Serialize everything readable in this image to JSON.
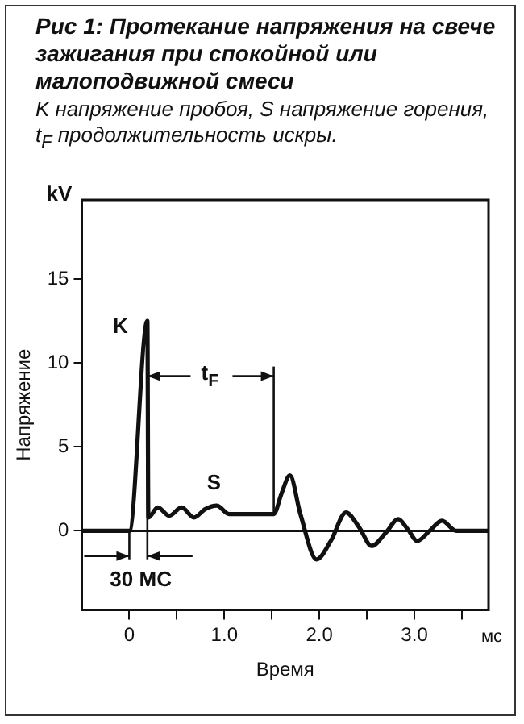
{
  "chart_data": {
    "type": "line",
    "title": "Рис 1: Протекание напряжения на свече зажигания при спокойной или малоподвижной смеси",
    "subtitle": "K напряжение пробоя, S напряжение горения, t$_{F}$ продолжительность искры.",
    "xlabel": "Время",
    "ylabel": "Напряжение",
    "annotations": [
      "kV",
      "мс",
      "K",
      "S",
      "t$_{F}$",
      "30 МС"
    ],
    "x": [
      -0.5,
      0,
      0.19,
      0.2,
      0.3,
      0.42,
      0.55,
      0.68,
      0.8,
      0.92,
      1.05,
      1.52,
      1.6,
      1.69,
      1.8,
      1.97,
      2.12,
      2.28,
      2.42,
      2.55,
      2.7,
      2.83,
      2.93,
      3.03,
      3.16,
      3.29,
      3.44,
      3.78
    ],
    "series": [
      {
        "color": "#111111",
        "values": [
          0,
          0,
          12.5,
          0.8,
          1.4,
          0.9,
          1.4,
          0.8,
          1.3,
          1.5,
          1.0,
          1.0,
          2.2,
          3.3,
          1.0,
          -1.7,
          -0.6,
          1.1,
          0.2,
          -0.9,
          -0.1,
          0.7,
          0.1,
          -0.6,
          0.0,
          0.6,
          0.0,
          0.0
        ]
      }
    ],
    "xlim": [
      -0.5,
      3.78
    ],
    "ylim": [
      -4.7,
      19.7
    ],
    "xticks": [
      0,
      {
        "value": 0.5,
        "label": null
      },
      {
        "value": 1,
        "label": "1.0"
      },
      {
        "value": 1.5,
        "label": null
      },
      {
        "value": 2,
        "label": "2.0"
      },
      {
        "value": 2.5,
        "label": null
      },
      {
        "value": 3,
        "label": "3.0"
      },
      {
        "value": 3.5,
        "label": null
      }
    ],
    "yticks": [
      0,
      5,
      10,
      15
    ],
    "ref_lines": [
      {
        "axis": "y",
        "value": 0,
        "color": "#111111"
      }
    ],
    "grid": false,
    "legend": false,
    "marker": "none",
    "line_style": "solid"
  }
}
